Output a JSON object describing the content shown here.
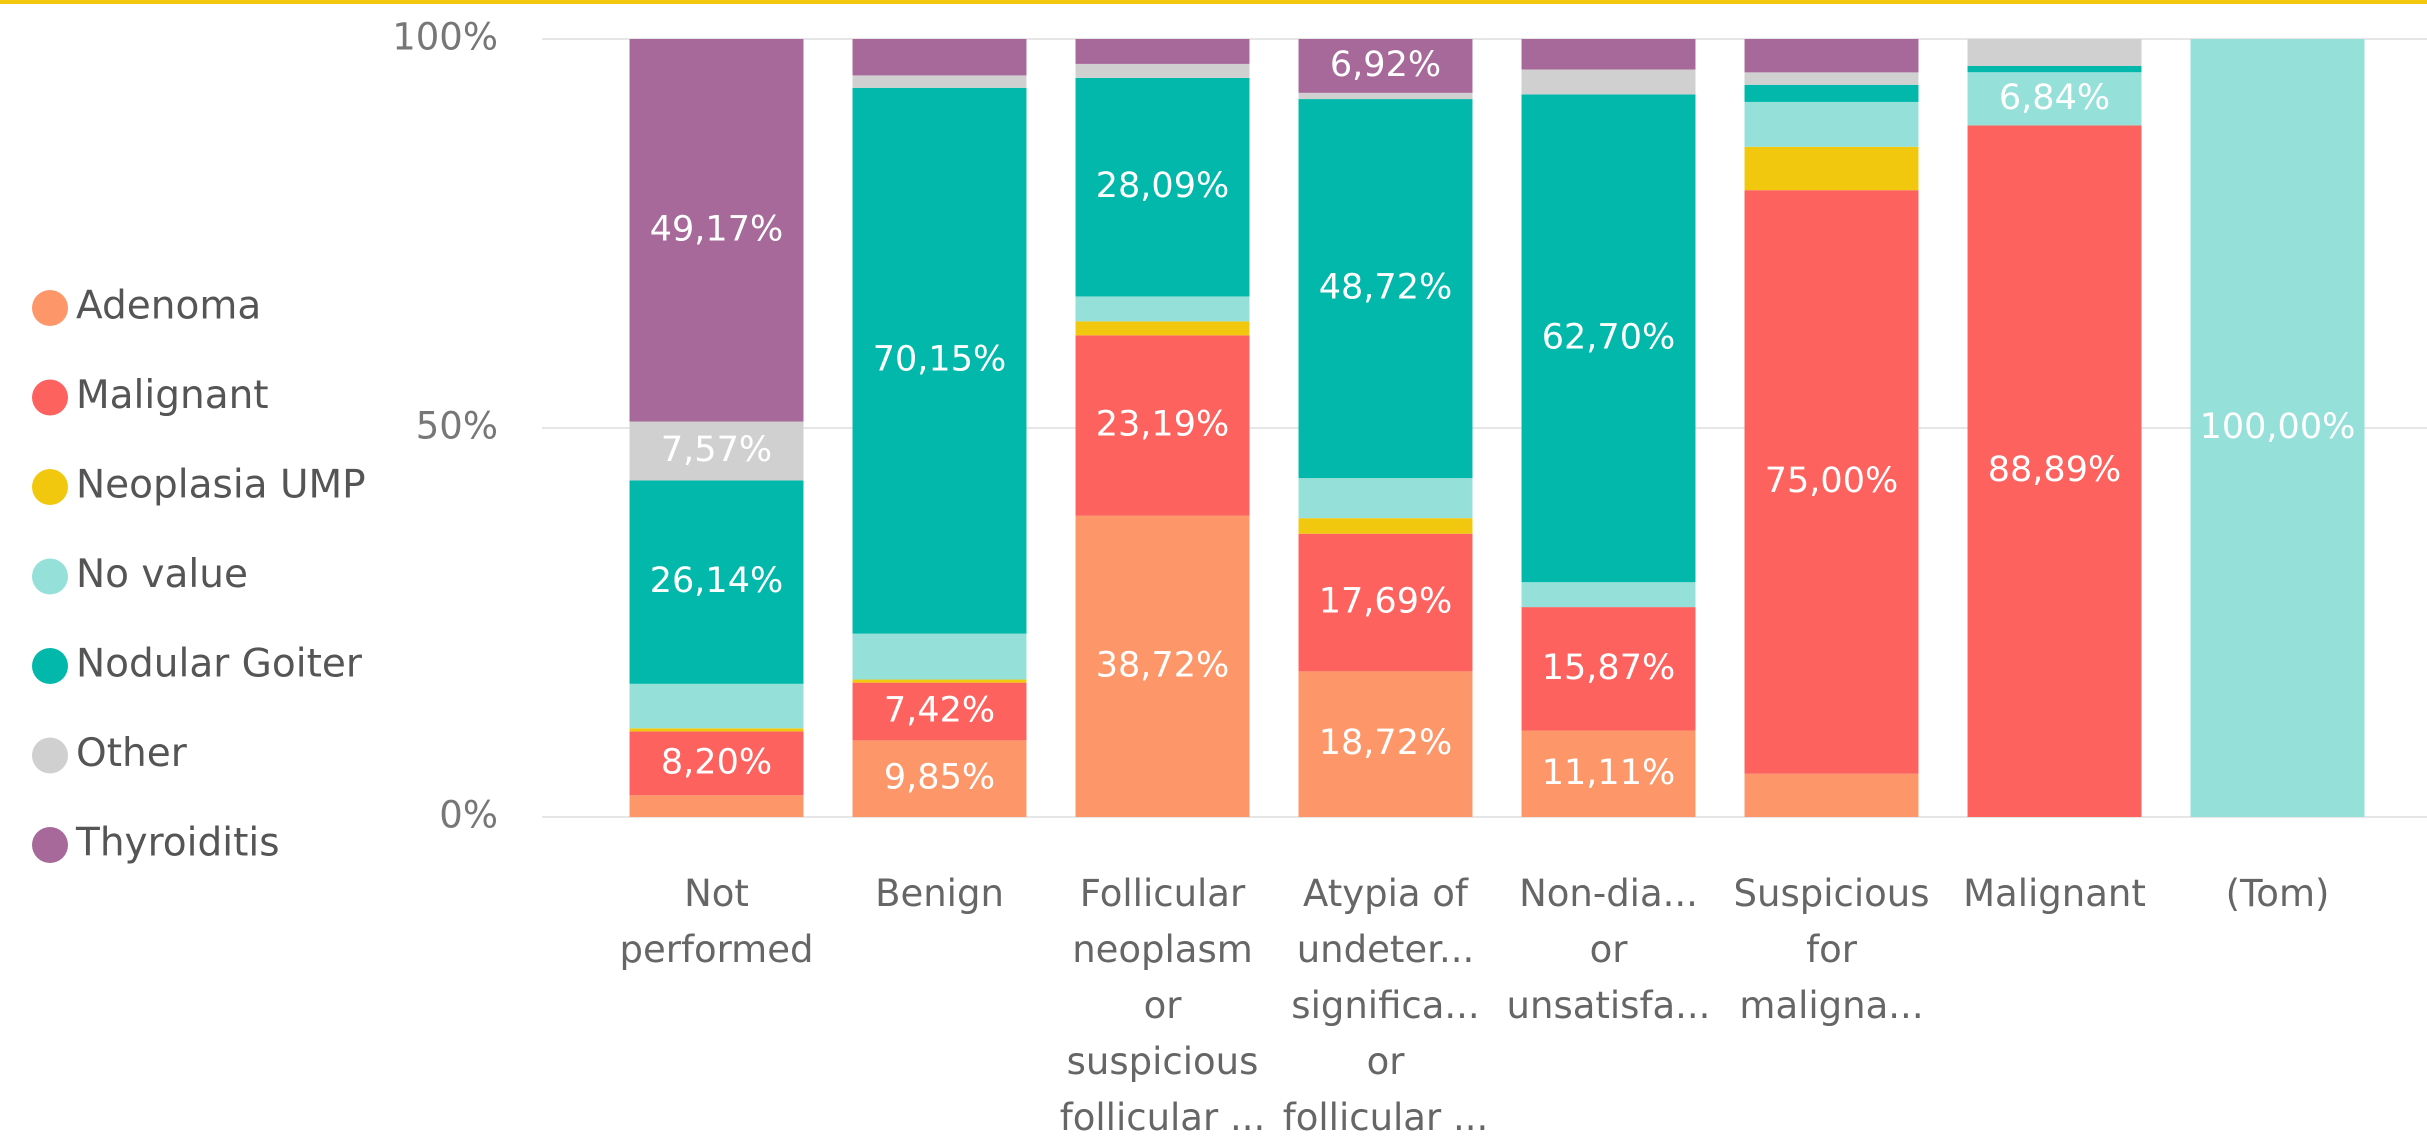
{
  "chart_data": {
    "type": "stacked_bar_100",
    "categories": [
      "Not\nperformed",
      "Benign",
      "Follicular\nneoplasm\nor\nsuspicious\nfollicular ...",
      "Atypia of\nundeter...\nsignifica...\nor\nfollicular ...",
      "Non-dia...\nor\nunsatisfa...",
      "Suspicious\nfor\nmaligna...",
      "Malignant",
      "(Tom)"
    ],
    "series": [
      {
        "name": "Adenoma",
        "color": "#fd9668",
        "values": [
          2.8,
          9.85,
          38.72,
          18.72,
          11.11,
          5.57,
          0,
          0
        ],
        "value_labels": [
          null,
          "9,85%",
          "38,72%",
          "18,72%",
          "11,11%",
          null,
          null,
          null
        ]
      },
      {
        "name": "Malignant",
        "color": "#fd625e",
        "values": [
          8.2,
          7.42,
          23.19,
          17.69,
          15.87,
          75.0,
          88.89,
          0
        ],
        "value_labels": [
          "8,20%",
          "7,42%",
          "23,19%",
          "17,69%",
          "15,87%",
          "75,00%",
          "88,89%",
          null
        ]
      },
      {
        "name": "Neoplasia UMP",
        "color": "#f2c80f",
        "values": [
          0.4,
          0.4,
          1.8,
          2.0,
          0,
          5.57,
          0,
          0
        ],
        "value_labels": [
          null,
          null,
          null,
          null,
          null,
          null,
          null,
          null
        ]
      },
      {
        "name": "No value",
        "color": "#95e0d9",
        "values": [
          5.72,
          5.9,
          3.2,
          5.15,
          3.2,
          5.77,
          6.84,
          100.0
        ],
        "value_labels": [
          null,
          null,
          null,
          null,
          null,
          null,
          "6,84%",
          "100,00%"
        ]
      },
      {
        "name": "Nodular Goiter",
        "color": "#01b8aa",
        "values": [
          26.14,
          70.15,
          28.09,
          48.72,
          62.7,
          2.2,
          0.8,
          0
        ],
        "value_labels": [
          "26,14%",
          "70,15%",
          "28,09%",
          "48,72%",
          "62,70%",
          null,
          null,
          null
        ]
      },
      {
        "name": "Other",
        "color": "#d0d0d0",
        "values": [
          7.57,
          1.6,
          1.8,
          0.8,
          3.2,
          1.6,
          3.47,
          0
        ],
        "value_labels": [
          "7,57%",
          null,
          null,
          null,
          null,
          null,
          null,
          null
        ]
      },
      {
        "name": "Thyroiditis",
        "color": "#a66999",
        "values": [
          49.17,
          4.68,
          3.2,
          6.92,
          3.92,
          4.29,
          0,
          0
        ],
        "value_labels": [
          "49,17%",
          null,
          null,
          "6,92%",
          null,
          null,
          null,
          null
        ]
      }
    ],
    "ylim": [
      0,
      100
    ],
    "yticks": [
      {
        "value": 0,
        "label": "0%"
      },
      {
        "value": 50,
        "label": "50%"
      },
      {
        "value": 100,
        "label": "100%"
      }
    ],
    "grid": true,
    "legend": "left"
  }
}
